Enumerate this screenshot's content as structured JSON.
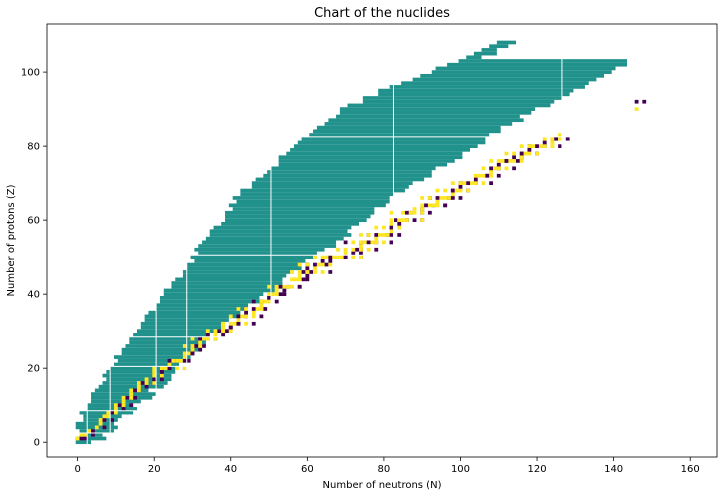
{
  "chart_data": {
    "type": "heatmap",
    "title": "Chart of the nuclides",
    "xlabel": "Number of neutrons (N)",
    "ylabel": "Number of protons (Z)",
    "xlim": [
      -8,
      167
    ],
    "ylim": [
      -4,
      113
    ],
    "xticks": [
      0,
      20,
      40,
      60,
      80,
      100,
      120,
      140,
      160
    ],
    "yticks": [
      0,
      20,
      40,
      60,
      80,
      100
    ],
    "grid": false,
    "legend": "none",
    "colors": {
      "other_isotopes": "#21918c",
      "near_stable": "#440154",
      "stable": "#fde725",
      "gap": "#ffffff"
    },
    "band_profile": {
      "description_z": [
        0,
        5,
        10,
        15,
        20,
        25,
        30,
        35,
        40,
        45,
        50,
        55,
        60,
        65,
        70,
        75,
        80,
        85,
        90,
        95,
        100,
        105,
        108
      ],
      "n_min": [
        0,
        1,
        3,
        6,
        9,
        12,
        16,
        19,
        23,
        27,
        31,
        34,
        38,
        41,
        46,
        52,
        57,
        63,
        70,
        80,
        92,
        104,
        110
      ],
      "n_max": [
        4,
        10,
        15,
        21,
        26,
        31,
        36,
        42,
        49,
        55,
        61,
        68,
        74,
        80,
        88,
        96,
        103,
        111,
        120,
        130,
        140,
        148,
        150
      ]
    },
    "stable_points": [
      [
        0,
        1
      ],
      [
        1,
        1
      ],
      [
        1,
        2
      ],
      [
        2,
        2
      ],
      [
        3,
        3
      ],
      [
        4,
        3
      ],
      [
        5,
        4
      ],
      [
        6,
        5
      ],
      [
        6,
        6
      ],
      [
        7,
        6
      ],
      [
        7,
        7
      ],
      [
        8,
        7
      ],
      [
        8,
        8
      ],
      [
        9,
        8
      ],
      [
        10,
        8
      ],
      [
        10,
        9
      ],
      [
        10,
        10
      ],
      [
        11,
        10
      ],
      [
        12,
        10
      ],
      [
        12,
        11
      ],
      [
        12,
        12
      ],
      [
        13,
        12
      ],
      [
        14,
        12
      ],
      [
        14,
        13
      ],
      [
        14,
        14
      ],
      [
        15,
        14
      ],
      [
        16,
        14
      ],
      [
        16,
        15
      ],
      [
        16,
        16
      ],
      [
        17,
        16
      ],
      [
        18,
        16
      ],
      [
        18,
        17
      ],
      [
        20,
        16
      ],
      [
        20,
        17
      ],
      [
        20,
        18
      ],
      [
        22,
        18
      ],
      [
        20,
        19
      ],
      [
        22,
        19
      ],
      [
        20,
        20
      ],
      [
        22,
        20
      ],
      [
        23,
        20
      ],
      [
        24,
        20
      ],
      [
        26,
        20
      ],
      [
        28,
        20
      ],
      [
        24,
        21
      ],
      [
        24,
        22
      ],
      [
        25,
        22
      ],
      [
        26,
        22
      ],
      [
        27,
        22
      ],
      [
        28,
        22
      ],
      [
        28,
        23
      ],
      [
        28,
        24
      ],
      [
        29,
        24
      ],
      [
        30,
        24
      ],
      [
        30,
        25
      ],
      [
        28,
        26
      ],
      [
        30,
        26
      ],
      [
        31,
        26
      ],
      [
        32,
        26
      ],
      [
        32,
        27
      ],
      [
        30,
        28
      ],
      [
        32,
        28
      ],
      [
        33,
        28
      ],
      [
        34,
        28
      ],
      [
        36,
        28
      ],
      [
        34,
        29
      ],
      [
        36,
        29
      ],
      [
        34,
        30
      ],
      [
        36,
        30
      ],
      [
        37,
        30
      ],
      [
        38,
        30
      ],
      [
        40,
        30
      ],
      [
        38,
        31
      ],
      [
        40,
        31
      ],
      [
        38,
        32
      ],
      [
        40,
        32
      ],
      [
        41,
        32
      ],
      [
        42,
        32
      ],
      [
        44,
        32
      ],
      [
        42,
        33
      ],
      [
        40,
        34
      ],
      [
        42,
        34
      ],
      [
        43,
        34
      ],
      [
        44,
        34
      ],
      [
        46,
        34
      ],
      [
        44,
        35
      ],
      [
        46,
        35
      ],
      [
        42,
        36
      ],
      [
        44,
        36
      ],
      [
        46,
        36
      ],
      [
        47,
        36
      ],
      [
        48,
        36
      ],
      [
        48,
        37
      ],
      [
        46,
        38
      ],
      [
        48,
        38
      ],
      [
        49,
        38
      ],
      [
        50,
        38
      ],
      [
        50,
        39
      ],
      [
        50,
        40
      ],
      [
        51,
        40
      ],
      [
        52,
        40
      ],
      [
        54,
        40
      ],
      [
        52,
        41
      ],
      [
        50,
        42
      ],
      [
        52,
        42
      ],
      [
        53,
        42
      ],
      [
        54,
        42
      ],
      [
        55,
        42
      ],
      [
        56,
        42
      ],
      [
        58,
        42
      ],
      [
        56,
        44
      ],
      [
        57,
        44
      ],
      [
        58,
        44
      ],
      [
        60,
        44
      ],
      [
        58,
        45
      ],
      [
        56,
        46
      ],
      [
        58,
        46
      ],
      [
        59,
        46
      ],
      [
        60,
        46
      ],
      [
        62,
        46
      ],
      [
        64,
        46
      ],
      [
        60,
        47
      ],
      [
        62,
        47
      ],
      [
        58,
        48
      ],
      [
        60,
        48
      ],
      [
        62,
        48
      ],
      [
        63,
        48
      ],
      [
        64,
        48
      ],
      [
        66,
        48
      ],
      [
        64,
        49
      ],
      [
        62,
        50
      ],
      [
        64,
        50
      ],
      [
        65,
        50
      ],
      [
        66,
        50
      ],
      [
        67,
        50
      ],
      [
        68,
        50
      ],
      [
        69,
        50
      ],
      [
        70,
        50
      ],
      [
        72,
        50
      ],
      [
        74,
        50
      ],
      [
        70,
        51
      ],
      [
        72,
        51
      ],
      [
        68,
        52
      ],
      [
        70,
        52
      ],
      [
        72,
        52
      ],
      [
        73,
        52
      ],
      [
        74,
        52
      ],
      [
        76,
        52
      ],
      [
        74,
        53
      ],
      [
        70,
        54
      ],
      [
        72,
        54
      ],
      [
        74,
        54
      ],
      [
        75,
        54
      ],
      [
        76,
        54
      ],
      [
        77,
        54
      ],
      [
        78,
        54
      ],
      [
        80,
        54
      ],
      [
        82,
        54
      ],
      [
        78,
        55
      ],
      [
        74,
        56
      ],
      [
        76,
        56
      ],
      [
        78,
        56
      ],
      [
        79,
        56
      ],
      [
        80,
        56
      ],
      [
        81,
        56
      ],
      [
        82,
        56
      ],
      [
        82,
        57
      ],
      [
        78,
        58
      ],
      [
        80,
        58
      ],
      [
        82,
        58
      ],
      [
        84,
        58
      ],
      [
        82,
        59
      ],
      [
        82,
        60
      ],
      [
        83,
        60
      ],
      [
        84,
        60
      ],
      [
        85,
        60
      ],
      [
        86,
        60
      ],
      [
        88,
        60
      ],
      [
        90,
        60
      ],
      [
        82,
        62
      ],
      [
        85,
        62
      ],
      [
        86,
        62
      ],
      [
        87,
        62
      ],
      [
        88,
        62
      ],
      [
        90,
        62
      ],
      [
        92,
        62
      ],
      [
        88,
        63
      ],
      [
        90,
        63
      ],
      [
        90,
        64
      ],
      [
        91,
        64
      ],
      [
        92,
        64
      ],
      [
        93,
        64
      ],
      [
        94,
        64
      ],
      [
        96,
        64
      ],
      [
        94,
        65
      ],
      [
        90,
        66
      ],
      [
        92,
        66
      ],
      [
        94,
        66
      ],
      [
        95,
        66
      ],
      [
        96,
        66
      ],
      [
        97,
        66
      ],
      [
        98,
        66
      ],
      [
        98,
        67
      ],
      [
        94,
        68
      ],
      [
        96,
        68
      ],
      [
        98,
        68
      ],
      [
        99,
        68
      ],
      [
        100,
        68
      ],
      [
        102,
        68
      ],
      [
        100,
        69
      ],
      [
        98,
        70
      ],
      [
        100,
        70
      ],
      [
        101,
        70
      ],
      [
        102,
        70
      ],
      [
        103,
        70
      ],
      [
        104,
        70
      ],
      [
        106,
        70
      ],
      [
        104,
        71
      ],
      [
        104,
        72
      ],
      [
        105,
        72
      ],
      [
        106,
        72
      ],
      [
        107,
        72
      ],
      [
        108,
        72
      ],
      [
        108,
        73
      ],
      [
        106,
        74
      ],
      [
        108,
        74
      ],
      [
        109,
        74
      ],
      [
        110,
        74
      ],
      [
        112,
        74
      ],
      [
        110,
        75
      ],
      [
        108,
        76
      ],
      [
        110,
        76
      ],
      [
        111,
        76
      ],
      [
        112,
        76
      ],
      [
        113,
        76
      ],
      [
        114,
        76
      ],
      [
        116,
        76
      ],
      [
        114,
        77
      ],
      [
        116,
        77
      ],
      [
        112,
        78
      ],
      [
        114,
        78
      ],
      [
        116,
        78
      ],
      [
        117,
        78
      ],
      [
        118,
        78
      ],
      [
        120,
        78
      ],
      [
        118,
        79
      ],
      [
        116,
        80
      ],
      [
        118,
        80
      ],
      [
        119,
        80
      ],
      [
        120,
        80
      ],
      [
        121,
        80
      ],
      [
        122,
        80
      ],
      [
        124,
        80
      ],
      [
        122,
        81
      ],
      [
        124,
        81
      ],
      [
        122,
        82
      ],
      [
        124,
        82
      ],
      [
        125,
        82
      ],
      [
        126,
        82
      ],
      [
        126,
        83
      ],
      [
        146,
        90
      ],
      [
        146,
        92
      ]
    ]
  }
}
